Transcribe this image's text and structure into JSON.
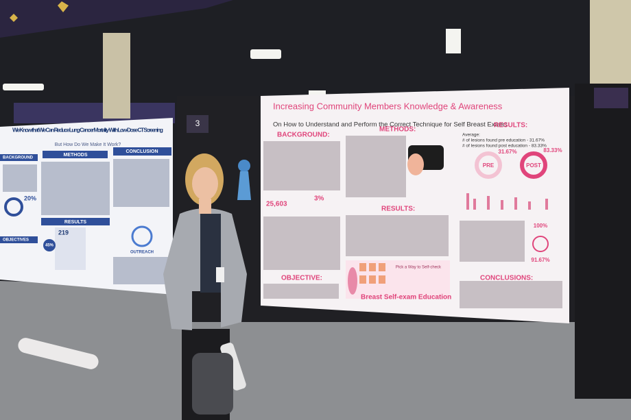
{
  "left_poster": {
    "title": "We Know that We Can Reduce Lung Cancer Mortality With Low-Dose CT Screening",
    "subtitle": "But How Do We Make It Work?",
    "sections": [
      "BACKGROUND",
      "METHODS",
      "CONCLUSION",
      "RESULTS",
      "OBJECTIVES"
    ],
    "stats": [
      "20%",
      "219",
      "45%"
    ],
    "icon_label": "OUTREACH"
  },
  "board_number": "3",
  "right_poster": {
    "title": "Increasing Community Members Knowledge & Awareness",
    "subtitle": "On How to Understand and Perform the Correct Technique for Self Breast Exams",
    "headers": {
      "background": "BACKGROUND:",
      "methods": "METHODS:",
      "results_top": "RESULTS:",
      "results_mid": "RESULTS:",
      "objective": "OBJECTIVE:",
      "conclusions": "CONCLUSIONS:"
    },
    "stats": {
      "cases": "25,603",
      "percent": "3%",
      "pre_value": "31.67%",
      "post_value": "83.33%",
      "pre_label": "PRE",
      "post_label": "POST",
      "comfortable": "100%",
      "regularly": "91.67%"
    },
    "results_lines": [
      "Average:",
      "# of lesions found pre education - 31.67%",
      "# of lesions found post education - 83.33%"
    ],
    "banner_caption": "Pick a Way to Self-check",
    "banner_title": "Breast Self-exam Education"
  }
}
